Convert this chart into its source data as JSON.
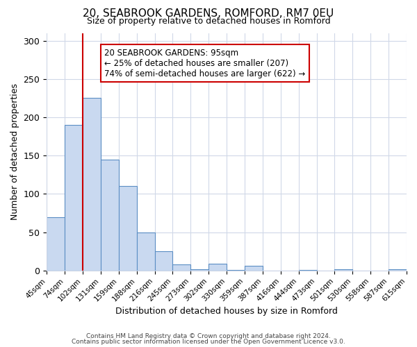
{
  "title": "20, SEABROOK GARDENS, ROMFORD, RM7 0EU",
  "subtitle": "Size of property relative to detached houses in Romford",
  "xlabel": "Distribution of detached houses by size in Romford",
  "ylabel": "Number of detached properties",
  "bar_heights": [
    70,
    190,
    225,
    145,
    110,
    50,
    25,
    8,
    2,
    9,
    1,
    6,
    0,
    0,
    1,
    0,
    2,
    0,
    0,
    2
  ],
  "bin_labels": [
    "45sqm",
    "74sqm",
    "102sqm",
    "131sqm",
    "159sqm",
    "188sqm",
    "216sqm",
    "245sqm",
    "273sqm",
    "302sqm",
    "330sqm",
    "359sqm",
    "387sqm",
    "416sqm",
    "444sqm",
    "473sqm",
    "501sqm",
    "530sqm",
    "558sqm",
    "587sqm",
    "615sqm"
  ],
  "bar_color": "#c9d9f0",
  "bar_edge_color": "#5b8ec4",
  "vline_x": 2,
  "vline_color": "#cc0000",
  "annotation_text": "20 SEABROOK GARDENS: 95sqm\n← 25% of detached houses are smaller (207)\n74% of semi-detached houses are larger (622) →",
  "annotation_box_color": "#cc0000",
  "ylim": [
    0,
    310
  ],
  "yticks": [
    0,
    50,
    100,
    150,
    200,
    250,
    300
  ],
  "footer_line1": "Contains HM Land Registry data © Crown copyright and database right 2024.",
  "footer_line2": "Contains public sector information licensed under the Open Government Licence v3.0.",
  "bg_color": "#ffffff",
  "grid_color": "#d0d8e8"
}
